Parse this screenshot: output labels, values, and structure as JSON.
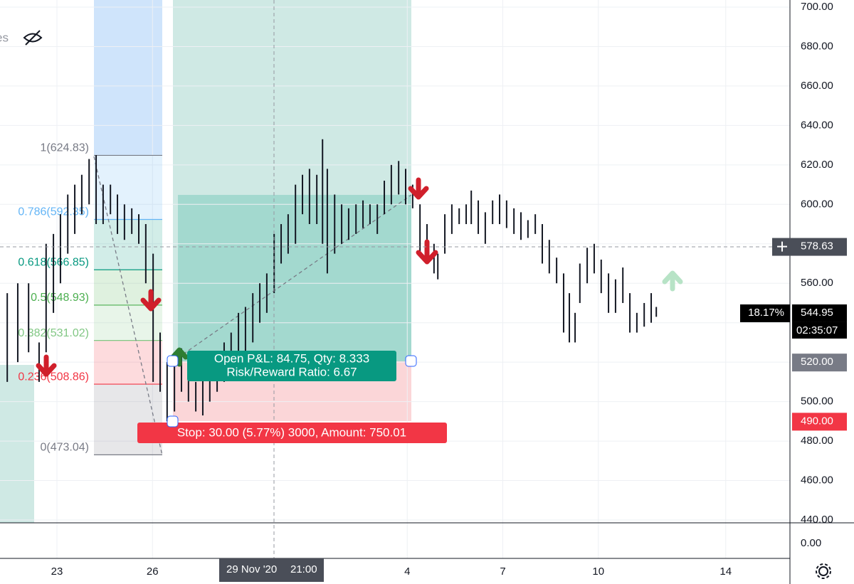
{
  "chart_data": {
    "type": "ohlc",
    "legend_fragment": "es",
    "xlim": [
      -1.8,
      23
    ],
    "xticks": [
      {
        "value": 0,
        "label": "23"
      },
      {
        "value": 3,
        "label": "26"
      },
      {
        "value": 11,
        "label": "4"
      },
      {
        "value": 14,
        "label": "7"
      },
      {
        "value": 17,
        "label": "10"
      },
      {
        "value": 21,
        "label": "14"
      }
    ],
    "crosshair_time": "29 Nov '20",
    "crosshair_clock": "21:00",
    "ylim": [
      440,
      700
    ],
    "yticks": [
      {
        "value": 440,
        "label": "440.00"
      },
      {
        "value": 460,
        "label": "460.00"
      },
      {
        "value": 480,
        "label": "480.00"
      },
      {
        "value": 500,
        "label": "500.00"
      },
      {
        "value": 520,
        "label": "520.00"
      },
      {
        "value": 540,
        "label": "540.00"
      },
      {
        "value": 560,
        "label": "560.00"
      },
      {
        "value": 580,
        "label": "580.00"
      },
      {
        "value": 600,
        "label": "600.00"
      },
      {
        "value": 620,
        "label": "620.00"
      },
      {
        "value": 640,
        "label": "640.00"
      },
      {
        "value": 660,
        "label": "660.00"
      },
      {
        "value": 680,
        "label": "680.00"
      },
      {
        "value": 700,
        "label": "700.00"
      }
    ],
    "grid": true,
    "lower_pane_label": "0.00",
    "bars": {
      "color": "#131722",
      "x": [
        -1.56,
        -1.23,
        -0.89,
        -0.56,
        -0.34,
        -0.11,
        0.11,
        0.34,
        0.56,
        0.78,
        1.01,
        1.23,
        1.45,
        1.68,
        1.9,
        2.12,
        2.35,
        2.57,
        2.79,
        3.02,
        3.24,
        3.46,
        3.69,
        3.91,
        4.13,
        4.36,
        4.58,
        4.8,
        5.03,
        5.25,
        5.47,
        5.7,
        5.92,
        6.15,
        6.37,
        6.59,
        6.82,
        7.04,
        7.26,
        7.49,
        7.71,
        7.93,
        8.16,
        8.34,
        8.49,
        8.72,
        8.94,
        9.16,
        9.39,
        9.61,
        9.83,
        10.06,
        10.28,
        10.5,
        10.73,
        10.95,
        11.17,
        11.4,
        11.62,
        11.84,
        11.96,
        12.18,
        12.4,
        12.63,
        12.85,
        13.01,
        13.23,
        13.45,
        13.68,
        13.9,
        14.12,
        14.35,
        14.57,
        14.79,
        15.02,
        15.24,
        15.46,
        15.69,
        15.91,
        16.09,
        16.27,
        16.42,
        16.65,
        16.87,
        17.09,
        17.32,
        17.54,
        17.77,
        17.99,
        18.21,
        18.44,
        18.66,
        18.82
      ],
      "high": [
        555,
        560,
        560,
        530,
        580,
        585,
        595,
        605,
        610,
        615,
        623,
        625,
        610,
        610,
        605,
        600,
        598,
        595,
        590,
        575,
        535,
        520,
        525,
        527,
        515,
        510,
        515,
        520,
        525,
        530,
        535,
        545,
        548,
        555,
        560,
        565,
        585,
        590,
        595,
        610,
        615,
        618,
        615,
        633,
        618,
        605,
        600,
        598,
        600,
        602,
        600,
        600,
        612,
        620,
        622,
        618,
        610,
        600,
        590,
        580,
        575,
        595,
        600,
        598,
        600,
        607,
        602,
        596,
        602,
        605,
        602,
        598,
        596,
        592,
        595,
        590,
        582,
        573,
        565,
        555,
        545,
        570,
        578,
        580,
        572,
        565,
        562,
        568,
        555,
        545,
        550,
        555,
        548
      ],
      "low": [
        510,
        520,
        525,
        510,
        525,
        545,
        560,
        575,
        585,
        595,
        600,
        590,
        590,
        595,
        585,
        582,
        585,
        580,
        560,
        510,
        505,
        490,
        495,
        505,
        500,
        495,
        493,
        500,
        505,
        510,
        515,
        520,
        525,
        530,
        540,
        545,
        555,
        570,
        575,
        580,
        595,
        590,
        590,
        580,
        565,
        575,
        580,
        582,
        585,
        588,
        590,
        585,
        595,
        600,
        605,
        600,
        598,
        575,
        570,
        565,
        562,
        575,
        585,
        590,
        590,
        590,
        585,
        580,
        590,
        590,
        588,
        585,
        582,
        583,
        585,
        570,
        565,
        560,
        535,
        530,
        530,
        550,
        560,
        565,
        555,
        545,
        545,
        550,
        535,
        535,
        538,
        540,
        543
      ]
    },
    "fib_levels": [
      {
        "label": "1(624.83)",
        "price": 624.83,
        "color": "#787b86"
      },
      {
        "label": "0.786(592.35)",
        "price": 592.35,
        "color": "#64b5f6"
      },
      {
        "label": "0.618(566.85)",
        "price": 566.85,
        "color": "#089981"
      },
      {
        "label": "0.5(548.93)",
        "price": 548.93,
        "color": "#4caf50"
      },
      {
        "label": "0.382(531.02)",
        "price": 531.02,
        "color": "#81c784"
      },
      {
        "label": "0.236(508.86)",
        "price": 508.86,
        "color": "#f23645"
      },
      {
        "label": "0(473.04)",
        "price": 473.04,
        "color": "#787b86"
      }
    ],
    "position": {
      "line1": "Open P&L: 84.75, Qty: 8.333",
      "line2": "Risk/Reward Ratio: 6.67",
      "stop": "Stop: 30.00 (5.77%) 3000, Amount: 750.01"
    },
    "price_markers": [
      {
        "value": 578.63,
        "label": "578.63",
        "color": "#4a4e58"
      },
      {
        "value": 544.95,
        "label": "544.95",
        "color": "#000000",
        "change": "18.17%",
        "countdown": "02:35:07"
      },
      {
        "value": 520,
        "label": "520.00",
        "color": "#787b86"
      },
      {
        "value": 490,
        "label": "490.00",
        "color": "#f23645"
      }
    ]
  }
}
